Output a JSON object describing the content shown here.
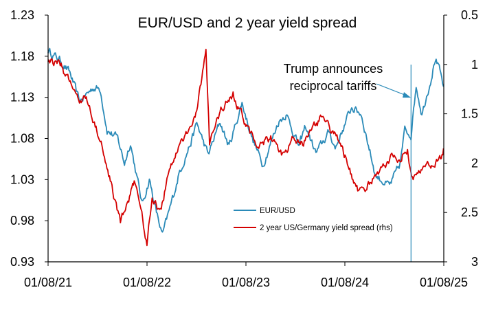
{
  "chart_data": {
    "type": "line",
    "title": "EUR/USD and 2 year yield spread",
    "x_ticks": [
      "01/08/21",
      "01/08/22",
      "01/08/23",
      "01/08/24",
      "01/08/25"
    ],
    "x_range": [
      "2021-08-01",
      "2025-08-01"
    ],
    "y_left": {
      "ticks": [
        "1.23",
        "1.18",
        "1.13",
        "1.08",
        "1.03",
        "0.98",
        "0.93"
      ],
      "range": [
        0.93,
        1.23
      ]
    },
    "y_right": {
      "ticks": [
        "0.5",
        "1",
        "1.5",
        "2",
        "2.5",
        "3"
      ],
      "range": [
        0.5,
        3
      ],
      "inverted": true
    },
    "legend_position": "center-right",
    "series": [
      {
        "name": "EUR/USD",
        "color": "#2a8ab8",
        "axis": "left",
        "points": [
          [
            "2021-08-01",
            1.187
          ],
          [
            "2021-09-15",
            1.175
          ],
          [
            "2021-10-20",
            1.16
          ],
          [
            "2021-11-25",
            1.125
          ],
          [
            "2022-01-15",
            1.142
          ],
          [
            "2022-02-10",
            1.14
          ],
          [
            "2022-03-07",
            1.09
          ],
          [
            "2022-04-15",
            1.08
          ],
          [
            "2022-05-10",
            1.05
          ],
          [
            "2022-06-01",
            1.075
          ],
          [
            "2022-07-14",
            1.0
          ],
          [
            "2022-08-10",
            1.03
          ],
          [
            "2022-09-05",
            0.99
          ],
          [
            "2022-09-27",
            0.962
          ],
          [
            "2022-10-25",
            0.995
          ],
          [
            "2022-11-30",
            1.04
          ],
          [
            "2023-01-10",
            1.075
          ],
          [
            "2023-02-01",
            1.098
          ],
          [
            "2023-03-15",
            1.06
          ],
          [
            "2023-04-28",
            1.1
          ],
          [
            "2023-05-31",
            1.07
          ],
          [
            "2023-07-18",
            1.123
          ],
          [
            "2023-08-25",
            1.08
          ],
          [
            "2023-10-03",
            1.048
          ],
          [
            "2023-11-29",
            1.1
          ],
          [
            "2023-12-28",
            1.11
          ],
          [
            "2024-02-14",
            1.07
          ],
          [
            "2024-03-08",
            1.095
          ],
          [
            "2024-04-16",
            1.062
          ],
          [
            "2024-06-05",
            1.088
          ],
          [
            "2024-06-26",
            1.068
          ],
          [
            "2024-08-26",
            1.118
          ],
          [
            "2024-09-30",
            1.11
          ],
          [
            "2024-11-22",
            1.035
          ],
          [
            "2025-01-13",
            1.022
          ],
          [
            "2025-02-20",
            1.048
          ],
          [
            "2025-03-10",
            1.09
          ],
          [
            "2025-04-02",
            1.085
          ],
          [
            "2025-04-21",
            1.145
          ],
          [
            "2025-05-12",
            1.11
          ],
          [
            "2025-06-16",
            1.155
          ],
          [
            "2025-07-01",
            1.178
          ],
          [
            "2025-07-18",
            1.16
          ],
          [
            "2025-07-31",
            1.143
          ]
        ]
      },
      {
        "name": "2 year US/Germany yield spread (rhs)",
        "color": "#d40000",
        "axis": "right",
        "points": [
          [
            "2021-08-01",
            0.97
          ],
          [
            "2021-09-15",
            1.0
          ],
          [
            "2021-10-25",
            1.2
          ],
          [
            "2021-11-25",
            1.4
          ],
          [
            "2021-12-20",
            1.35
          ],
          [
            "2022-01-25",
            1.65
          ],
          [
            "2022-02-25",
            1.9
          ],
          [
            "2022-03-25",
            2.25
          ],
          [
            "2022-04-25",
            2.6
          ],
          [
            "2022-05-20",
            2.4
          ],
          [
            "2022-06-15",
            2.2
          ],
          [
            "2022-07-10",
            2.5
          ],
          [
            "2022-08-01",
            2.8
          ],
          [
            "2022-08-20",
            2.35
          ],
          [
            "2022-09-20",
            2.5
          ],
          [
            "2022-10-20",
            2.1
          ],
          [
            "2022-11-25",
            1.85
          ],
          [
            "2022-12-20",
            1.7
          ],
          [
            "2023-02-01",
            1.5
          ],
          [
            "2023-03-07",
            0.85
          ],
          [
            "2023-03-20",
            1.8
          ],
          [
            "2023-05-01",
            1.45
          ],
          [
            "2023-06-15",
            1.3
          ],
          [
            "2023-08-01",
            1.6
          ],
          [
            "2023-09-15",
            1.85
          ],
          [
            "2023-11-01",
            1.75
          ],
          [
            "2023-12-20",
            1.95
          ],
          [
            "2024-01-25",
            1.75
          ],
          [
            "2024-03-01",
            1.8
          ],
          [
            "2024-04-30",
            1.55
          ],
          [
            "2024-06-05",
            1.65
          ],
          [
            "2024-07-15",
            1.8
          ],
          [
            "2024-08-10",
            2.0
          ],
          [
            "2024-09-20",
            2.3
          ],
          [
            "2024-11-05",
            2.2
          ],
          [
            "2024-12-20",
            2.05
          ],
          [
            "2025-01-15",
            1.95
          ],
          [
            "2025-02-20",
            1.95
          ],
          [
            "2025-03-20",
            1.85
          ],
          [
            "2025-04-10",
            2.2
          ],
          [
            "2025-05-15",
            2.0
          ],
          [
            "2025-06-20",
            2.05
          ],
          [
            "2025-07-20",
            1.95
          ],
          [
            "2025-07-31",
            1.85
          ]
        ]
      }
    ],
    "annotation": {
      "lines": [
        "Trump announces",
        "reciprocal tariffs"
      ],
      "event_date": "2025-04-02"
    }
  }
}
